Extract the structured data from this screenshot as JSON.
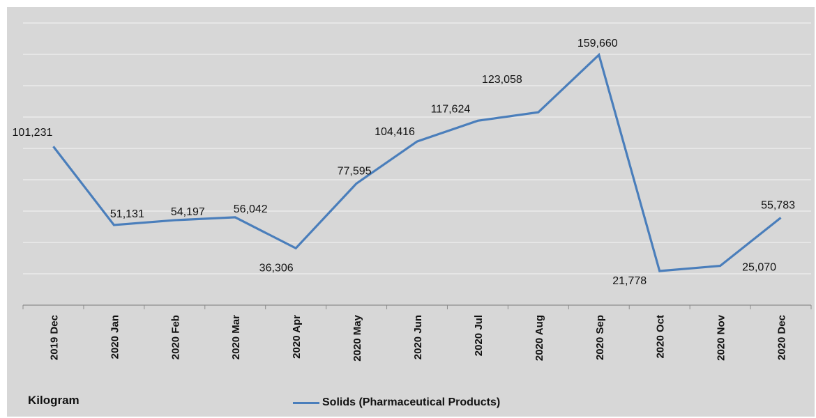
{
  "chart_data": {
    "type": "line",
    "categories": [
      "2019 Dec",
      "2020 Jan",
      "2020 Feb",
      "2020 Mar",
      "2020 Apr",
      "2020 May",
      "2020 Jun",
      "2020 Jul",
      "2020 Aug",
      "2020 Sep",
      "2020 Oct",
      "2020 Nov",
      "2020 Dec"
    ],
    "series": [
      {
        "name": "Solids (Pharmaceutical Products)",
        "values": [
          101231,
          51131,
          54197,
          56042,
          36306,
          77595,
          104416,
          117624,
          123058,
          159660,
          21778,
          25070,
          55783
        ],
        "labels": [
          "101,231",
          "51,131",
          "54,197",
          "56,042",
          "36,306",
          "77,595",
          "104,416",
          "117,624",
          "123,058",
          "159,660",
          "21,778",
          "25,070",
          "55,783"
        ],
        "color": "#4a7ebb"
      }
    ],
    "unit_label": "Kilogram",
    "ylim": [
      0,
      180000
    ],
    "grid": true,
    "legend": "bottom"
  }
}
